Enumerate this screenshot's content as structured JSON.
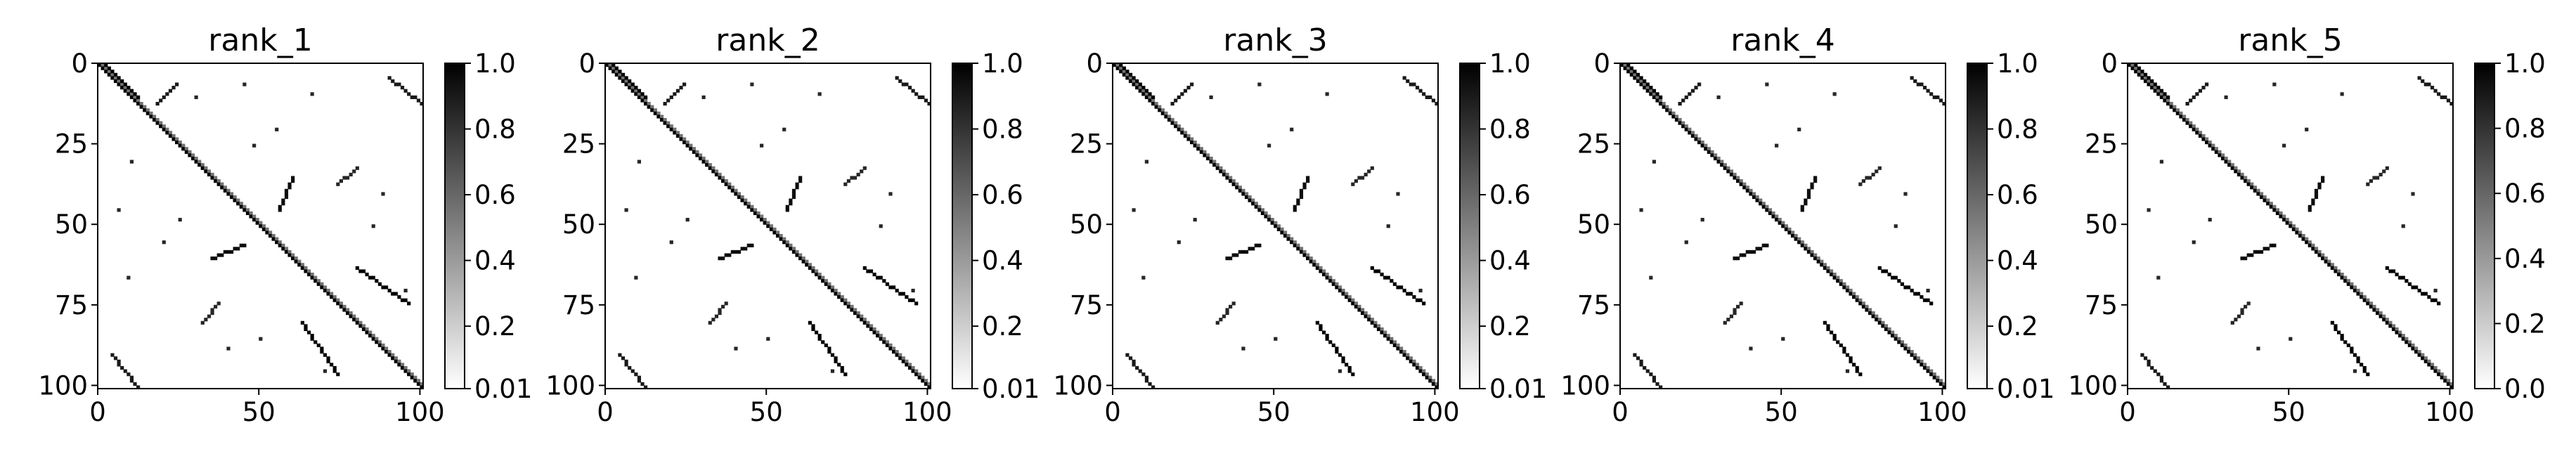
{
  "chart_data": [
    {
      "type": "heatmap",
      "title": "rank_1",
      "x_ticks": [
        "0",
        "50",
        "100"
      ],
      "y_ticks": [
        "0",
        "25",
        "50",
        "75",
        "100"
      ],
      "xlim": [
        0,
        101
      ],
      "ylim": [
        0,
        101
      ],
      "colorbar": {
        "ticks": [
          "1.0",
          "0.8",
          "0.6",
          "0.4",
          "0.2",
          "0.01"
        ],
        "range": [
          0.01,
          1.0
        ]
      },
      "colormap": [
        "#ffffff",
        "#000000"
      ],
      "grid_size": 101,
      "main_diagonal": {
        "from": [
          0,
          0
        ],
        "to": [
          100,
          100
        ],
        "value": 1.0
      },
      "contact_segments": [
        {
          "from": [
            2,
            0
          ],
          "to": [
            12,
            10
          ],
          "value": 1.0
        },
        {
          "from": [
            18,
            12
          ],
          "to": [
            24,
            6
          ],
          "value": 0.9
        },
        {
          "from": [
            35,
            60
          ],
          "to": [
            45,
            56
          ],
          "value": 0.95
        },
        {
          "from": [
            60,
            35
          ],
          "to": [
            56,
            45
          ],
          "value": 0.95
        },
        {
          "from": [
            80,
            63
          ],
          "to": [
            96,
            74
          ],
          "value": 1.0
        },
        {
          "from": [
            63,
            80
          ],
          "to": [
            74,
            96
          ],
          "value": 1.0
        },
        {
          "from": [
            90,
            4
          ],
          "to": [
            100,
            12
          ],
          "value": 0.9
        },
        {
          "from": [
            4,
            90
          ],
          "to": [
            12,
            100
          ],
          "value": 0.9
        },
        {
          "from": [
            80,
            32
          ],
          "to": [
            74,
            37
          ],
          "value": 0.85
        },
        {
          "from": [
            32,
            80
          ],
          "to": [
            37,
            74
          ],
          "value": 0.85
        }
      ],
      "sparse_contacts": [
        [
          9,
          66
        ],
        [
          66,
          9
        ],
        [
          25,
          48
        ],
        [
          48,
          25
        ],
        [
          55,
          20
        ],
        [
          20,
          55
        ],
        [
          70,
          95
        ],
        [
          95,
          70
        ],
        [
          30,
          10
        ],
        [
          10,
          30
        ],
        [
          85,
          50
        ],
        [
          50,
          85
        ],
        [
          40,
          88
        ],
        [
          88,
          40
        ],
        [
          6,
          45
        ],
        [
          45,
          6
        ]
      ]
    },
    {
      "type": "heatmap",
      "title": "rank_2",
      "x_ticks": [
        "0",
        "50",
        "100"
      ],
      "y_ticks": [
        "0",
        "25",
        "50",
        "75",
        "100"
      ],
      "xlim": [
        0,
        101
      ],
      "ylim": [
        0,
        101
      ],
      "colorbar": {
        "ticks": [
          "1.0",
          "0.8",
          "0.6",
          "0.4",
          "0.2",
          "0.01"
        ],
        "range": [
          0.01,
          1.0
        ]
      },
      "colormap": [
        "#ffffff",
        "#000000"
      ],
      "grid_size": 101,
      "main_diagonal": {
        "from": [
          0,
          0
        ],
        "to": [
          100,
          100
        ],
        "value": 1.0
      },
      "contact_segments": [
        {
          "from": [
            2,
            0
          ],
          "to": [
            12,
            10
          ],
          "value": 1.0
        },
        {
          "from": [
            18,
            12
          ],
          "to": [
            24,
            6
          ],
          "value": 0.9
        },
        {
          "from": [
            35,
            60
          ],
          "to": [
            45,
            56
          ],
          "value": 0.95
        },
        {
          "from": [
            60,
            35
          ],
          "to": [
            56,
            45
          ],
          "value": 0.95
        },
        {
          "from": [
            80,
            63
          ],
          "to": [
            96,
            74
          ],
          "value": 1.0
        },
        {
          "from": [
            63,
            80
          ],
          "to": [
            74,
            96
          ],
          "value": 1.0
        },
        {
          "from": [
            90,
            4
          ],
          "to": [
            100,
            12
          ],
          "value": 0.9
        },
        {
          "from": [
            4,
            90
          ],
          "to": [
            12,
            100
          ],
          "value": 0.9
        },
        {
          "from": [
            80,
            32
          ],
          "to": [
            74,
            37
          ],
          "value": 0.85
        },
        {
          "from": [
            32,
            80
          ],
          "to": [
            37,
            74
          ],
          "value": 0.85
        }
      ],
      "sparse_contacts": [
        [
          9,
          66
        ],
        [
          66,
          9
        ],
        [
          25,
          48
        ],
        [
          48,
          25
        ],
        [
          55,
          20
        ],
        [
          20,
          55
        ],
        [
          70,
          95
        ],
        [
          95,
          70
        ],
        [
          30,
          10
        ],
        [
          10,
          30
        ],
        [
          85,
          50
        ],
        [
          50,
          85
        ],
        [
          40,
          88
        ],
        [
          88,
          40
        ],
        [
          6,
          45
        ],
        [
          45,
          6
        ]
      ]
    },
    {
      "type": "heatmap",
      "title": "rank_3",
      "x_ticks": [
        "0",
        "50",
        "100"
      ],
      "y_ticks": [
        "0",
        "25",
        "50",
        "75",
        "100"
      ],
      "xlim": [
        0,
        101
      ],
      "ylim": [
        0,
        101
      ],
      "colorbar": {
        "ticks": [
          "1.0",
          "0.8",
          "0.6",
          "0.4",
          "0.2",
          "0.01"
        ],
        "range": [
          0.01,
          1.0
        ]
      },
      "colormap": [
        "#ffffff",
        "#000000"
      ],
      "grid_size": 101,
      "main_diagonal": {
        "from": [
          0,
          0
        ],
        "to": [
          100,
          100
        ],
        "value": 1.0
      },
      "contact_segments": [
        {
          "from": [
            2,
            0
          ],
          "to": [
            12,
            10
          ],
          "value": 1.0
        },
        {
          "from": [
            18,
            12
          ],
          "to": [
            24,
            6
          ],
          "value": 0.9
        },
        {
          "from": [
            35,
            60
          ],
          "to": [
            45,
            56
          ],
          "value": 0.95
        },
        {
          "from": [
            60,
            35
          ],
          "to": [
            56,
            45
          ],
          "value": 0.95
        },
        {
          "from": [
            80,
            63
          ],
          "to": [
            96,
            74
          ],
          "value": 1.0
        },
        {
          "from": [
            63,
            80
          ],
          "to": [
            74,
            96
          ],
          "value": 1.0
        },
        {
          "from": [
            90,
            4
          ],
          "to": [
            100,
            12
          ],
          "value": 0.9
        },
        {
          "from": [
            4,
            90
          ],
          "to": [
            12,
            100
          ],
          "value": 0.9
        },
        {
          "from": [
            80,
            32
          ],
          "to": [
            74,
            37
          ],
          "value": 0.85
        },
        {
          "from": [
            32,
            80
          ],
          "to": [
            37,
            74
          ],
          "value": 0.85
        }
      ],
      "sparse_contacts": [
        [
          9,
          66
        ],
        [
          66,
          9
        ],
        [
          25,
          48
        ],
        [
          48,
          25
        ],
        [
          55,
          20
        ],
        [
          20,
          55
        ],
        [
          70,
          95
        ],
        [
          95,
          70
        ],
        [
          30,
          10
        ],
        [
          10,
          30
        ],
        [
          85,
          50
        ],
        [
          50,
          85
        ],
        [
          40,
          88
        ],
        [
          88,
          40
        ],
        [
          6,
          45
        ],
        [
          45,
          6
        ]
      ]
    },
    {
      "type": "heatmap",
      "title": "rank_4",
      "x_ticks": [
        "0",
        "50",
        "100"
      ],
      "y_ticks": [
        "0",
        "25",
        "50",
        "75",
        "100"
      ],
      "xlim": [
        0,
        101
      ],
      "ylim": [
        0,
        101
      ],
      "colorbar": {
        "ticks": [
          "1.0",
          "0.8",
          "0.6",
          "0.4",
          "0.2",
          "0.01"
        ],
        "range": [
          0.01,
          1.0
        ]
      },
      "colormap": [
        "#ffffff",
        "#000000"
      ],
      "grid_size": 101,
      "main_diagonal": {
        "from": [
          0,
          0
        ],
        "to": [
          100,
          100
        ],
        "value": 1.0
      },
      "contact_segments": [
        {
          "from": [
            2,
            0
          ],
          "to": [
            12,
            10
          ],
          "value": 1.0
        },
        {
          "from": [
            18,
            12
          ],
          "to": [
            24,
            6
          ],
          "value": 0.9
        },
        {
          "from": [
            35,
            60
          ],
          "to": [
            45,
            56
          ],
          "value": 0.95
        },
        {
          "from": [
            60,
            35
          ],
          "to": [
            56,
            45
          ],
          "value": 0.95
        },
        {
          "from": [
            80,
            63
          ],
          "to": [
            96,
            74
          ],
          "value": 1.0
        },
        {
          "from": [
            63,
            80
          ],
          "to": [
            74,
            96
          ],
          "value": 1.0
        },
        {
          "from": [
            90,
            4
          ],
          "to": [
            100,
            12
          ],
          "value": 0.9
        },
        {
          "from": [
            4,
            90
          ],
          "to": [
            12,
            100
          ],
          "value": 0.9
        },
        {
          "from": [
            80,
            32
          ],
          "to": [
            74,
            37
          ],
          "value": 0.85
        },
        {
          "from": [
            32,
            80
          ],
          "to": [
            37,
            74
          ],
          "value": 0.85
        }
      ],
      "sparse_contacts": [
        [
          9,
          66
        ],
        [
          66,
          9
        ],
        [
          25,
          48
        ],
        [
          48,
          25
        ],
        [
          55,
          20
        ],
        [
          20,
          55
        ],
        [
          70,
          95
        ],
        [
          95,
          70
        ],
        [
          30,
          10
        ],
        [
          10,
          30
        ],
        [
          85,
          50
        ],
        [
          50,
          85
        ],
        [
          40,
          88
        ],
        [
          88,
          40
        ],
        [
          6,
          45
        ],
        [
          45,
          6
        ]
      ]
    },
    {
      "type": "heatmap",
      "title": "rank_5",
      "x_ticks": [
        "0",
        "50",
        "100"
      ],
      "y_ticks": [
        "0",
        "25",
        "50",
        "75",
        "100"
      ],
      "xlim": [
        0,
        101
      ],
      "ylim": [
        0,
        101
      ],
      "colorbar": {
        "ticks": [
          "1.0",
          "0.8",
          "0.6",
          "0.4",
          "0.2",
          "0.0"
        ],
        "range": [
          0.0,
          1.0
        ]
      },
      "colormap": [
        "#ffffff",
        "#000000"
      ],
      "grid_size": 101,
      "main_diagonal": {
        "from": [
          0,
          0
        ],
        "to": [
          100,
          100
        ],
        "value": 1.0
      },
      "contact_segments": [
        {
          "from": [
            2,
            0
          ],
          "to": [
            12,
            10
          ],
          "value": 1.0
        },
        {
          "from": [
            18,
            12
          ],
          "to": [
            24,
            6
          ],
          "value": 0.9
        },
        {
          "from": [
            35,
            60
          ],
          "to": [
            45,
            56
          ],
          "value": 0.95
        },
        {
          "from": [
            60,
            35
          ],
          "to": [
            56,
            45
          ],
          "value": 0.95
        },
        {
          "from": [
            80,
            63
          ],
          "to": [
            96,
            74
          ],
          "value": 1.0
        },
        {
          "from": [
            63,
            80
          ],
          "to": [
            74,
            96
          ],
          "value": 1.0
        },
        {
          "from": [
            90,
            4
          ],
          "to": [
            100,
            12
          ],
          "value": 0.9
        },
        {
          "from": [
            4,
            90
          ],
          "to": [
            12,
            100
          ],
          "value": 0.9
        },
        {
          "from": [
            80,
            32
          ],
          "to": [
            74,
            37
          ],
          "value": 0.85
        },
        {
          "from": [
            32,
            80
          ],
          "to": [
            37,
            74
          ],
          "value": 0.85
        }
      ],
      "sparse_contacts": [
        [
          9,
          66
        ],
        [
          66,
          9
        ],
        [
          25,
          48
        ],
        [
          48,
          25
        ],
        [
          55,
          20
        ],
        [
          20,
          55
        ],
        [
          70,
          95
        ],
        [
          95,
          70
        ],
        [
          30,
          10
        ],
        [
          10,
          30
        ],
        [
          85,
          50
        ],
        [
          50,
          85
        ],
        [
          40,
          88
        ],
        [
          88,
          40
        ],
        [
          6,
          45
        ],
        [
          45,
          6
        ]
      ]
    }
  ]
}
